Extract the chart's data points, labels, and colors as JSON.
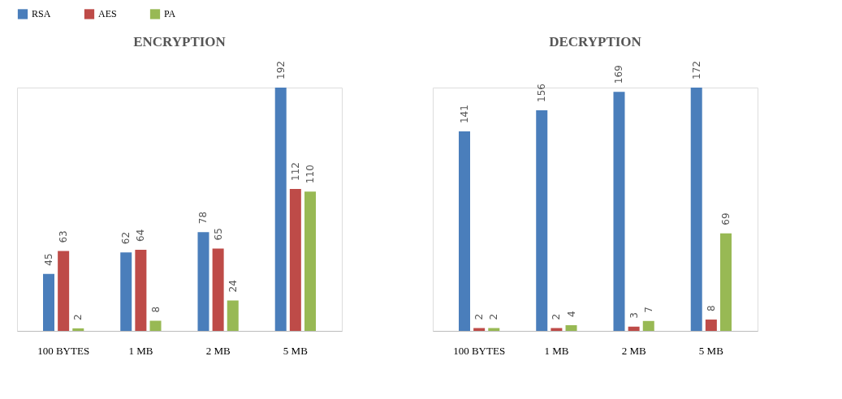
{
  "chart_data": [
    {
      "type": "bar",
      "title": "ENCRYPTION",
      "categories": [
        "100 BYTES",
        "1 MB",
        "2 MB",
        "5 MB"
      ],
      "data_labels": true,
      "legend": "top",
      "series": [
        {
          "name": "RSA",
          "color": "#4a7ebb",
          "values": [
            45,
            62,
            78,
            192
          ]
        },
        {
          "name": "AES",
          "color": "#be4b48",
          "values": [
            63,
            64,
            65,
            112
          ]
        },
        {
          "name": "PA",
          "color": "#98b954",
          "values": [
            2,
            8,
            24,
            110
          ]
        }
      ]
    },
    {
      "type": "bar",
      "title": "DECRYPTION",
      "categories": [
        "100 BYTES",
        "1 MB",
        "2 MB",
        "5 MB"
      ],
      "data_labels": true,
      "legend": "top",
      "series": [
        {
          "name": "RSA",
          "color": "#4a7ebb",
          "values": [
            141,
            156,
            169,
            172
          ]
        },
        {
          "name": "AES",
          "color": "#be4b48",
          "values": [
            2,
            2,
            3,
            8
          ]
        },
        {
          "name": "PA",
          "color": "#98b954",
          "values": [
            2,
            4,
            7,
            69
          ]
        }
      ]
    }
  ]
}
